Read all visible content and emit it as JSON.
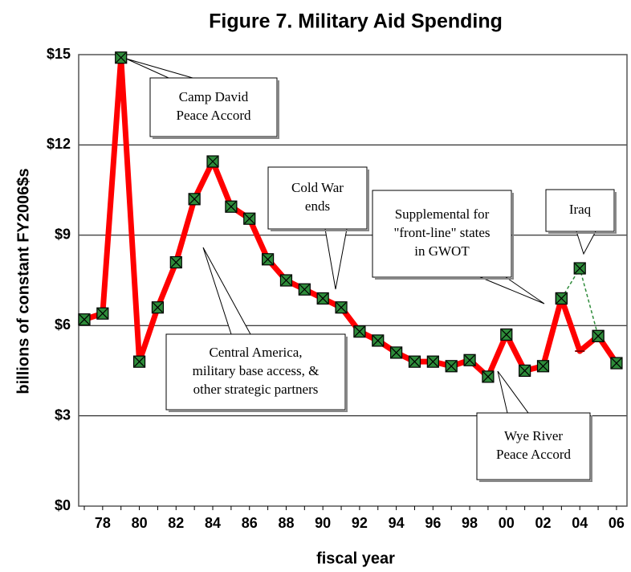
{
  "chart_data": {
    "type": "line",
    "title": "Figure 7. Military Aid Spending",
    "y_label": "billions of constant FY2006$s",
    "x_label": "fiscal year",
    "categories": [
      null,
      "78",
      null,
      "80",
      null,
      "82",
      null,
      "84",
      null,
      "86",
      null,
      "88",
      null,
      "90",
      null,
      "92",
      null,
      "94",
      null,
      "96",
      null,
      "98",
      null,
      "00",
      null,
      "02",
      null,
      "04",
      null,
      "06"
    ],
    "series": [
      {
        "color": "#ff0000",
        "marker_color": "#2e8b3a",
        "values": [
          6.2,
          6.4,
          14.9,
          4.8,
          6.6,
          8.1,
          10.2,
          11.45,
          9.95,
          9.55,
          8.2,
          7.5,
          7.2,
          6.9,
          6.6,
          5.8,
          5.5,
          5.1,
          4.8,
          4.8,
          4.65,
          4.85,
          4.3,
          5.7,
          4.5,
          4.65,
          6.9,
          5.15,
          5.65,
          4.75
        ]
      },
      {
        "color": "#2e8b3a",
        "marker_color": "#2e8b3a",
        "dashed": true,
        "values": [
          null,
          null,
          null,
          null,
          null,
          null,
          null,
          null,
          null,
          null,
          null,
          null,
          null,
          null,
          null,
          null,
          null,
          null,
          null,
          null,
          null,
          null,
          null,
          null,
          null,
          null,
          6.9,
          7.9,
          5.65,
          null
        ]
      }
    ],
    "ylim": [
      0,
      15
    ],
    "yticks": [
      {
        "value": 0,
        "label": "$0"
      },
      {
        "value": 3,
        "label": "$3"
      },
      {
        "value": 6,
        "label": "$6"
      },
      {
        "value": 9,
        "label": "$9"
      },
      {
        "value": 12,
        "label": "$12"
      },
      {
        "value": 15,
        "label": "$15"
      }
    ],
    "grid": true,
    "annotations": [
      {
        "text": [
          "Camp David",
          "Peace Accord"
        ]
      },
      {
        "text": [
          "Cold War",
          "ends"
        ]
      },
      {
        "text": [
          "Supplemental for",
          "\"front-line\" states",
          "in GWOT"
        ]
      },
      {
        "text": [
          "Iraq"
        ]
      },
      {
        "text": [
          "Central America,",
          "military base access, &",
          "other strategic partners"
        ]
      },
      {
        "text": [
          "Wye River",
          "Peace Accord"
        ]
      }
    ]
  }
}
